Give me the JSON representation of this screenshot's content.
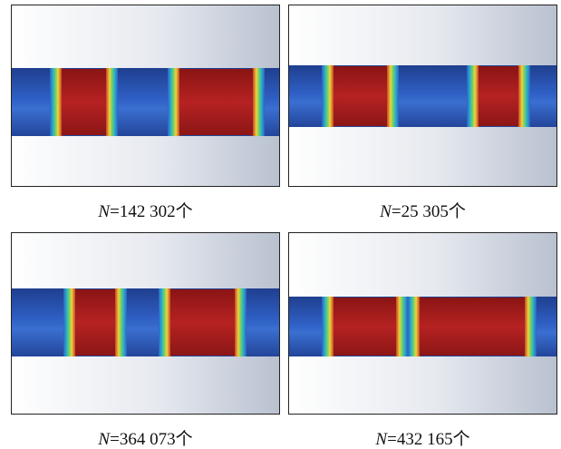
{
  "panels": [
    {
      "caption": {
        "variable": "N",
        "text": "=142 302个"
      }
    },
    {
      "caption": {
        "variable": "N",
        "text": "=25 305个"
      }
    },
    {
      "caption": {
        "variable": "N",
        "text": "=364 073个"
      }
    },
    {
      "caption": {
        "variable": "N",
        "text": "=432 165个"
      }
    }
  ]
}
